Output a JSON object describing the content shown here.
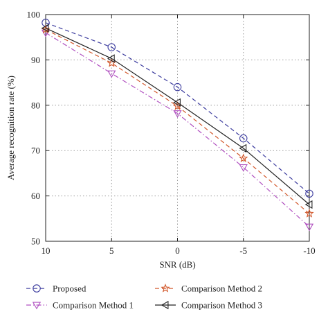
{
  "chart_data": {
    "type": "line",
    "title": "",
    "xlabel": "SNR (dB)",
    "ylabel": "Average recognition rate (%)",
    "categories": [
      "10",
      "5",
      "0",
      "-5",
      "-10"
    ],
    "ylim": [
      50,
      100
    ],
    "yticks": [
      "50",
      "60",
      "70",
      "80",
      "90",
      "100"
    ],
    "grid": true,
    "legend_position": "bottom",
    "series": [
      {
        "name": "Proposed",
        "values": [
          98.2,
          92.8,
          84.0,
          72.7,
          60.5
        ],
        "color": "#3b3b9e",
        "dash": "dashed",
        "marker": "circle"
      },
      {
        "name": "Comparison Method 1",
        "values": [
          96.0,
          87.0,
          78.2,
          66.3,
          53.2
        ],
        "color": "#b04fc0",
        "dash": "dashdot",
        "marker": "triangle-down"
      },
      {
        "name": "Comparison Method 2",
        "values": [
          96.7,
          89.3,
          79.8,
          68.3,
          56.1
        ],
        "color": "#d2572a",
        "dash": "dashed",
        "marker": "star"
      },
      {
        "name": "Comparison Method 3",
        "values": [
          97.0,
          90.3,
          80.6,
          70.5,
          58.1
        ],
        "color": "#222222",
        "dash": "solid",
        "marker": "triangle-left"
      }
    ]
  }
}
